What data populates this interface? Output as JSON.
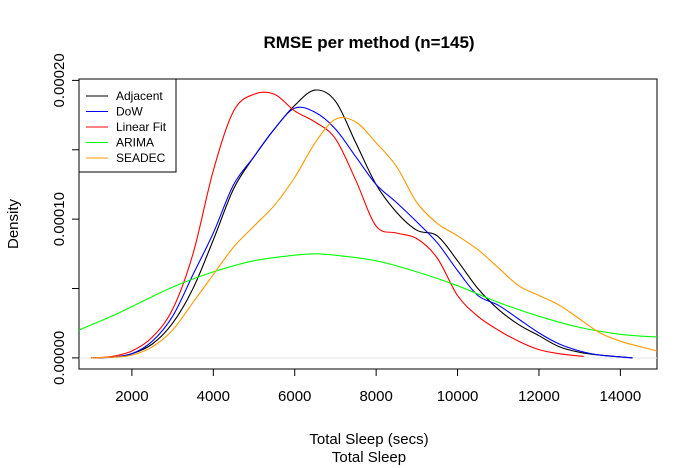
{
  "chart_data": {
    "type": "line",
    "title": "RMSE per method (n=145)",
    "xlabel": "Total Sleep (secs)",
    "xlabel2": "Total Sleep",
    "ylabel": "Density",
    "xlim": [
      700,
      14900
    ],
    "ylim": [
      -8e-06,
      0.000201
    ],
    "xticks": [
      2000,
      4000,
      6000,
      8000,
      10000,
      12000,
      14000
    ],
    "xtick_labels": [
      "2000",
      "4000",
      "6000",
      "8000",
      "10000",
      "12000",
      "14000"
    ],
    "yticks": [
      0,
      5e-05,
      0.0001,
      0.00015,
      0.0002
    ],
    "ytick_labels": [
      "0.00000",
      "",
      "0.00010",
      "",
      "0.00020"
    ],
    "legend_position": "top-left",
    "series": [
      {
        "name": "Adjacent",
        "color": "#000000",
        "points": [
          [
            1000,
            0
          ],
          [
            1500,
            5e-07
          ],
          [
            2000,
            3e-06
          ],
          [
            2500,
            1e-05
          ],
          [
            3000,
            2.5e-05
          ],
          [
            3500,
            5e-05
          ],
          [
            4000,
            8.5e-05
          ],
          [
            4500,
            0.000122
          ],
          [
            5000,
            0.000145
          ],
          [
            5500,
            0.000165
          ],
          [
            6000,
            0.000182
          ],
          [
            6500,
            0.000193
          ],
          [
            7000,
            0.000185
          ],
          [
            7500,
            0.000155
          ],
          [
            8000,
            0.000125
          ],
          [
            8500,
            0.000105
          ],
          [
            9000,
            9.2e-05
          ],
          [
            9500,
            8.8e-05
          ],
          [
            10000,
            7e-05
          ],
          [
            10500,
            5e-05
          ],
          [
            11000,
            3.5e-05
          ],
          [
            11500,
            2.4e-05
          ],
          [
            12000,
            1.6e-05
          ],
          [
            12500,
            8e-06
          ],
          [
            13000,
            4e-06
          ],
          [
            13500,
            2e-06
          ],
          [
            14300,
            0
          ]
        ]
      },
      {
        "name": "DoW",
        "color": "#0000ff",
        "points": [
          [
            1000,
            0
          ],
          [
            1500,
            5e-07
          ],
          [
            2000,
            3e-06
          ],
          [
            2500,
            1.2e-05
          ],
          [
            3000,
            3e-05
          ],
          [
            3500,
            6e-05
          ],
          [
            4000,
            9e-05
          ],
          [
            4500,
            0.000125
          ],
          [
            5000,
            0.000145
          ],
          [
            5500,
            0.000165
          ],
          [
            6000,
            0.00018
          ],
          [
            6500,
            0.000177
          ],
          [
            7000,
            0.000165
          ],
          [
            7500,
            0.000145
          ],
          [
            8000,
            0.000125
          ],
          [
            8500,
            0.000112
          ],
          [
            9000,
            9.8e-05
          ],
          [
            9500,
            8.3e-05
          ],
          [
            10000,
            6.3e-05
          ],
          [
            10500,
            4.5e-05
          ],
          [
            11000,
            3.8e-05
          ],
          [
            11500,
            2.8e-05
          ],
          [
            12000,
            1.8e-05
          ],
          [
            12500,
            1e-05
          ],
          [
            13000,
            5e-06
          ],
          [
            13500,
            2e-06
          ],
          [
            14300,
            0
          ]
        ]
      },
      {
        "name": "Linear Fit",
        "color": "#ff0000",
        "points": [
          [
            1000,
            0
          ],
          [
            1500,
            1e-06
          ],
          [
            2000,
            5e-06
          ],
          [
            2500,
            1.5e-05
          ],
          [
            3000,
            3.5e-05
          ],
          [
            3500,
            7.5e-05
          ],
          [
            4000,
            0.000135
          ],
          [
            4500,
            0.000178
          ],
          [
            5000,
            0.00019
          ],
          [
            5500,
            0.00019
          ],
          [
            6000,
            0.000178
          ],
          [
            6500,
            0.00017
          ],
          [
            7000,
            0.000158
          ],
          [
            7500,
            0.000128
          ],
          [
            8000,
            9.5e-05
          ],
          [
            8500,
            9e-05
          ],
          [
            9000,
            8.6e-05
          ],
          [
            9500,
            7.2e-05
          ],
          [
            10000,
            4.5e-05
          ],
          [
            10500,
            3e-05
          ],
          [
            11000,
            2e-05
          ],
          [
            11500,
            1.2e-05
          ],
          [
            12000,
            6e-06
          ],
          [
            12500,
            3e-06
          ],
          [
            13100,
            1e-06
          ]
        ]
      },
      {
        "name": "ARIMA",
        "color": "#00ff00",
        "points": [
          [
            700,
            2e-05
          ],
          [
            1500,
            3e-05
          ],
          [
            2000,
            3.7e-05
          ],
          [
            3000,
            5.1e-05
          ],
          [
            4000,
            6.2e-05
          ],
          [
            5000,
            7e-05
          ],
          [
            6000,
            7.4e-05
          ],
          [
            6500,
            7.5e-05
          ],
          [
            7000,
            7.4e-05
          ],
          [
            8000,
            7e-05
          ],
          [
            9000,
            6.2e-05
          ],
          [
            10000,
            5.2e-05
          ],
          [
            11000,
            4e-05
          ],
          [
            12000,
            3e-05
          ],
          [
            13000,
            2.2e-05
          ],
          [
            14000,
            1.7e-05
          ],
          [
            14900,
            1.5e-05
          ]
        ]
      },
      {
        "name": "SEADEC",
        "color": "#ff9900",
        "points": [
          [
            1000,
            0
          ],
          [
            1500,
            5e-07
          ],
          [
            2000,
            2e-06
          ],
          [
            2500,
            8e-06
          ],
          [
            3000,
            2e-05
          ],
          [
            3500,
            4e-05
          ],
          [
            4000,
            6e-05
          ],
          [
            4500,
            8e-05
          ],
          [
            5000,
            9.5e-05
          ],
          [
            5500,
            0.00011
          ],
          [
            6000,
            0.00013
          ],
          [
            6500,
            0.000155
          ],
          [
            7000,
            0.000172
          ],
          [
            7500,
            0.00017
          ],
          [
            8000,
            0.000155
          ],
          [
            8500,
            0.000138
          ],
          [
            9000,
            0.000112
          ],
          [
            9500,
            9.7e-05
          ],
          [
            10000,
            8.8e-05
          ],
          [
            10500,
            7.8e-05
          ],
          [
            11000,
            6.5e-05
          ],
          [
            11500,
            5.2e-05
          ],
          [
            12000,
            4.5e-05
          ],
          [
            12500,
            3.8e-05
          ],
          [
            13000,
            2.8e-05
          ],
          [
            13500,
            1.8e-05
          ],
          [
            14000,
            1.2e-05
          ],
          [
            14500,
            8e-06
          ],
          [
            14900,
            5e-06
          ]
        ]
      }
    ]
  }
}
